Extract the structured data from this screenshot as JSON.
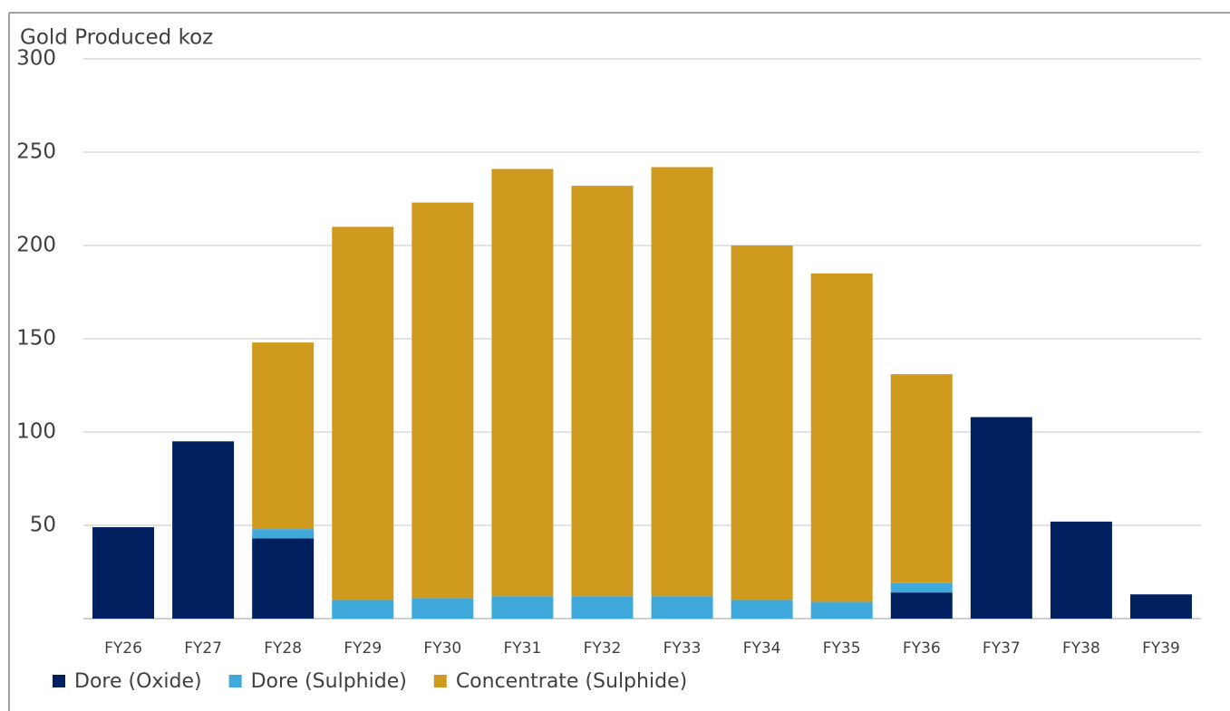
{
  "chart_data": {
    "type": "stacked_bar",
    "title": "Gold Produced koz",
    "categories": [
      "FY26",
      "FY27",
      "FY28",
      "FY29",
      "FY30",
      "FY31",
      "FY32",
      "FY33",
      "FY34",
      "FY35",
      "FY36",
      "FY37",
      "FY38",
      "FY39"
    ],
    "series": [
      {
        "name": "Dore (Oxide)",
        "color": "#002060",
        "values": [
          49,
          95,
          43,
          null,
          null,
          null,
          null,
          null,
          null,
          null,
          14,
          108,
          52,
          13
        ]
      },
      {
        "name": "Dore (Sulphide)",
        "color": "#3fa9db",
        "values": [
          null,
          null,
          5,
          10,
          11,
          12,
          12,
          12,
          10,
          9,
          5,
          null,
          null,
          null
        ]
      },
      {
        "name": "Concentrate (Sulphide)",
        "color": "#d09a1e",
        "values": [
          null,
          null,
          100,
          200,
          212,
          229,
          220,
          230,
          190,
          176,
          112,
          null,
          null,
          null
        ]
      }
    ],
    "ylim": [
      0,
      300
    ],
    "yticks": [
      50,
      100,
      150,
      200,
      250,
      300
    ],
    "grid": true,
    "legend": "bottom-left"
  }
}
